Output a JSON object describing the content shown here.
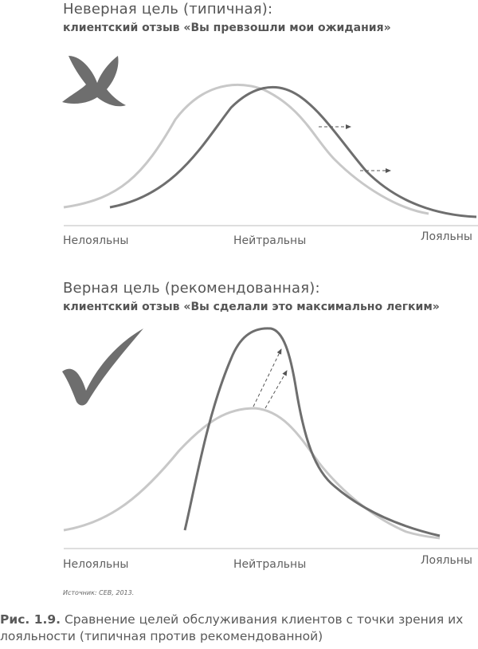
{
  "top": {
    "title": "Неверная цель (типичная):",
    "subtitle": "клиентский отзыв «Вы превзошли мои ожидания»",
    "labels": {
      "left": "Нелояльны",
      "center": "Нейтральны",
      "right": "Лояльны"
    }
  },
  "bottom": {
    "title": "Верная цель (рекомендованная):",
    "subtitle": "клиентский отзыв «Вы сделали это максимально легким»",
    "labels": {
      "left": "Нелояльны",
      "center": "Нейтральны",
      "right": "Лояльны"
    }
  },
  "source": "Источник: CEB, 2013.",
  "caption": {
    "number": "Рис. 1.9.",
    "text": "Сравнение целей обслуживания клиентов с точки зрения их лояльности (типичная против рекомендованной)"
  },
  "icons": {
    "top": "x-mark-icon",
    "bottom": "checkmark-icon"
  },
  "colors": {
    "light_curve": "#c8c8c8",
    "dark_curve": "#6e6e6e",
    "icon": "#6e6e6e"
  }
}
